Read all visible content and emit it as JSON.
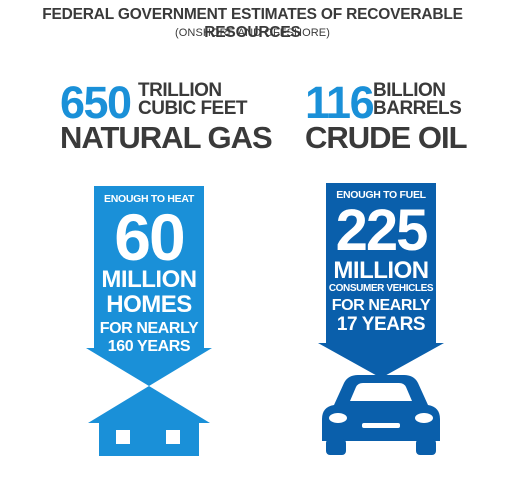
{
  "header": {
    "title": "FEDERAL GOVERNMENT ESTIMATES OF RECOVERABLE RESOURCES",
    "subtitle": "(ONSHORE AND OFFSHORE)"
  },
  "left": {
    "number": "650",
    "unit_line1": "TRILLION",
    "unit_line2": "CUBIC FEET",
    "label": "NATURAL GAS",
    "arrow": {
      "line1": "ENOUGH TO HEAT",
      "big": "60",
      "line2": "MILLION",
      "line3": "HOMES",
      "line4": "FOR NEARLY",
      "line5": "160 YEARS"
    },
    "icon": "house-icon"
  },
  "right": {
    "number": "116",
    "unit_line1": "BILLION",
    "unit_line2": "BARRELS",
    "label": "CRUDE OIL",
    "arrow": {
      "line1": "ENOUGH TO FUEL",
      "big": "225",
      "line2": "MILLION",
      "line3": "CONSUMER VEHICLES",
      "line4": "FOR NEARLY",
      "line5": "17 YEARS"
    },
    "icon": "car-icon"
  },
  "colors": {
    "light_blue": "#1a90d8",
    "dark_blue": "#0a5fab",
    "text_gray": "#3a3a3a"
  }
}
